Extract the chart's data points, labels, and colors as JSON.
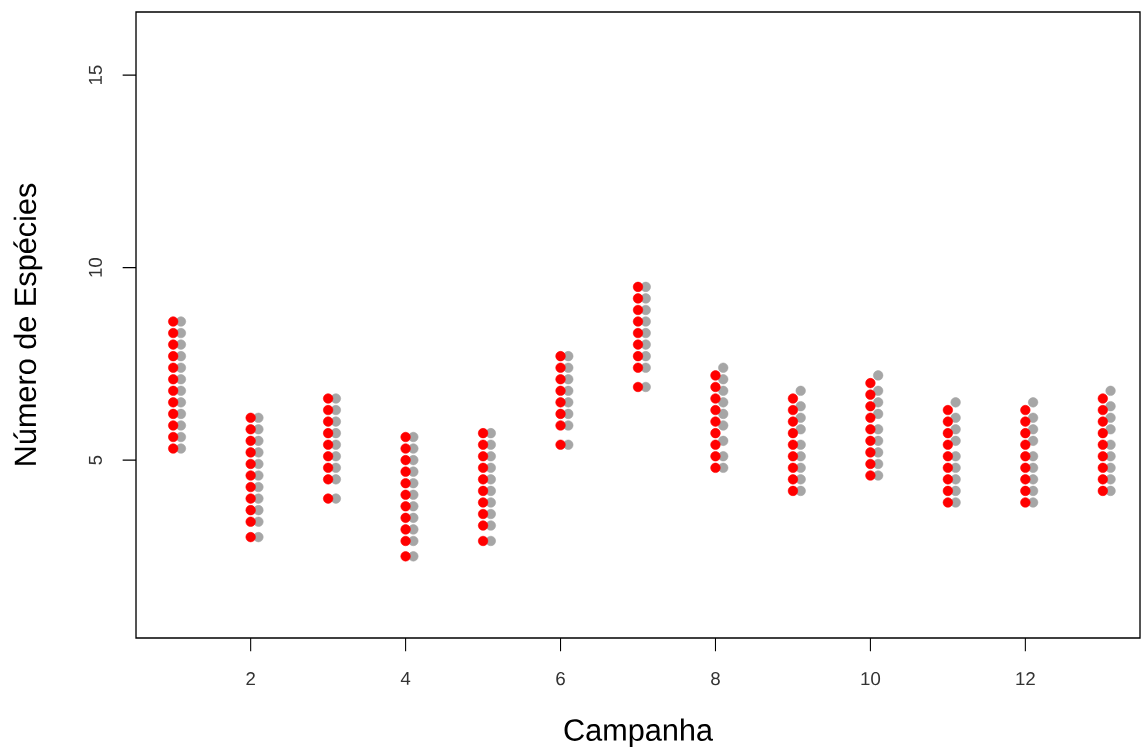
{
  "chart_data": {
    "type": "scatter",
    "xlabel": "Campanha",
    "ylabel": "Número de Espécies",
    "xlim": [
      0.52,
      13.48
    ],
    "ylim": [
      0.38,
      16.64
    ],
    "xticks": [
      2,
      4,
      6,
      8,
      10,
      12
    ],
    "yticks": [
      5,
      10,
      15
    ],
    "grid": false,
    "legend": false,
    "marker": "circle",
    "series": [
      {
        "color": "#a6a6a6",
        "x": [
          1.1,
          1.1,
          1.1,
          1.1,
          1.1,
          1.1,
          1.1,
          1.1,
          1.1,
          1.1,
          1.1,
          1.1,
          2.1,
          2.1,
          2.1,
          2.1,
          2.1,
          2.1,
          2.1,
          2.1,
          2.1,
          2.1,
          2.1,
          3.1,
          3.1,
          3.1,
          3.1,
          3.1,
          3.1,
          3.1,
          3.1,
          3.1,
          4.1,
          4.1,
          4.1,
          4.1,
          4.1,
          4.1,
          4.1,
          4.1,
          4.1,
          4.1,
          4.1,
          5.1,
          5.1,
          5.1,
          5.1,
          5.1,
          5.1,
          5.1,
          5.1,
          5.1,
          5.1,
          6.1,
          6.1,
          6.1,
          6.1,
          6.1,
          6.1,
          6.1,
          6.1,
          7.1,
          7.1,
          7.1,
          7.1,
          7.1,
          7.1,
          7.1,
          7.1,
          7.1,
          8.1,
          8.1,
          8.1,
          8.1,
          8.1,
          8.1,
          8.1,
          8.1,
          8.1,
          9.1,
          9.1,
          9.1,
          9.1,
          9.1,
          9.1,
          9.1,
          9.1,
          9.1,
          10.1,
          10.1,
          10.1,
          10.1,
          10.1,
          10.1,
          10.1,
          10.1,
          10.1,
          11.1,
          11.1,
          11.1,
          11.1,
          11.1,
          11.1,
          11.1,
          11.1,
          11.1,
          12.1,
          12.1,
          12.1,
          12.1,
          12.1,
          12.1,
          12.1,
          12.1,
          12.1,
          13.1,
          13.1,
          13.1,
          13.1,
          13.1,
          13.1,
          13.1,
          13.1,
          13.1
        ],
        "values": [
          8.6,
          8.3,
          8.0,
          7.7,
          7.4,
          7.1,
          6.8,
          6.5,
          6.2,
          5.9,
          5.6,
          5.3,
          6.1,
          5.8,
          5.5,
          5.2,
          4.9,
          4.6,
          4.3,
          4.0,
          3.7,
          3.4,
          3.0,
          6.6,
          6.3,
          6.0,
          5.7,
          5.4,
          5.1,
          4.8,
          4.5,
          4.0,
          5.6,
          5.3,
          5.0,
          4.7,
          4.4,
          4.1,
          3.8,
          3.5,
          3.2,
          2.9,
          2.5,
          5.7,
          5.4,
          5.1,
          4.8,
          4.5,
          4.2,
          3.9,
          3.6,
          3.3,
          2.9,
          7.7,
          7.4,
          7.1,
          6.8,
          6.5,
          6.2,
          5.9,
          5.4,
          9.5,
          9.2,
          8.9,
          8.6,
          8.3,
          8.0,
          7.7,
          7.4,
          6.9,
          7.4,
          7.1,
          6.8,
          6.5,
          6.2,
          5.9,
          5.5,
          5.1,
          4.8,
          6.8,
          6.4,
          6.1,
          5.8,
          5.4,
          5.1,
          4.8,
          4.5,
          4.2,
          7.2,
          6.8,
          6.5,
          6.2,
          5.8,
          5.5,
          5.2,
          4.9,
          4.6,
          6.5,
          6.1,
          5.8,
          5.5,
          5.1,
          4.8,
          4.5,
          4.2,
          3.9,
          6.5,
          6.1,
          5.8,
          5.5,
          5.1,
          4.8,
          4.5,
          4.2,
          3.9,
          6.8,
          6.4,
          6.1,
          5.8,
          5.4,
          5.1,
          4.8,
          4.5,
          4.2
        ]
      },
      {
        "color": "#ff0000",
        "x": [
          1,
          1,
          1,
          1,
          1,
          1,
          1,
          1,
          1,
          1,
          1,
          1,
          2,
          2,
          2,
          2,
          2,
          2,
          2,
          2,
          2,
          2,
          2,
          3,
          3,
          3,
          3,
          3,
          3,
          3,
          3,
          3,
          4,
          4,
          4,
          4,
          4,
          4,
          4,
          4,
          4,
          4,
          4,
          5,
          5,
          5,
          5,
          5,
          5,
          5,
          5,
          5,
          5,
          6,
          6,
          6,
          6,
          6,
          6,
          6,
          6,
          7,
          7,
          7,
          7,
          7,
          7,
          7,
          7,
          7,
          8,
          8,
          8,
          8,
          8,
          8,
          8,
          8,
          8,
          9,
          9,
          9,
          9,
          9,
          9,
          9,
          9,
          9,
          10,
          10,
          10,
          10,
          10,
          10,
          10,
          10,
          10,
          11,
          11,
          11,
          11,
          11,
          11,
          11,
          11,
          11,
          12,
          12,
          12,
          12,
          12,
          12,
          12,
          12,
          12,
          13,
          13,
          13,
          13,
          13,
          13,
          13,
          13,
          13
        ],
        "values": [
          8.6,
          8.3,
          8.0,
          7.7,
          7.4,
          7.1,
          6.8,
          6.5,
          6.2,
          5.9,
          5.6,
          5.3,
          6.1,
          5.8,
          5.5,
          5.2,
          4.9,
          4.6,
          4.3,
          4.0,
          3.7,
          3.4,
          3.0,
          6.6,
          6.3,
          6.0,
          5.7,
          5.4,
          5.1,
          4.8,
          4.5,
          4.0,
          5.6,
          5.3,
          5.0,
          4.7,
          4.4,
          4.1,
          3.8,
          3.5,
          3.2,
          2.9,
          2.5,
          5.7,
          5.4,
          5.1,
          4.8,
          4.5,
          4.2,
          3.9,
          3.6,
          3.3,
          2.9,
          7.7,
          7.4,
          7.1,
          6.8,
          6.5,
          6.2,
          5.9,
          5.4,
          9.5,
          9.2,
          8.9,
          8.6,
          8.3,
          8.0,
          7.7,
          7.4,
          6.9,
          7.2,
          6.9,
          6.6,
          6.3,
          6.0,
          5.7,
          5.4,
          5.1,
          4.8,
          6.6,
          6.3,
          6.0,
          5.7,
          5.4,
          5.1,
          4.8,
          4.5,
          4.2,
          7.0,
          6.7,
          6.4,
          6.1,
          5.8,
          5.5,
          5.2,
          4.9,
          4.6,
          6.3,
          6.0,
          5.7,
          5.4,
          5.1,
          4.8,
          4.5,
          4.2,
          3.9,
          6.3,
          6.0,
          5.7,
          5.4,
          5.1,
          4.8,
          4.5,
          4.2,
          3.9,
          6.6,
          6.3,
          6.0,
          5.7,
          5.4,
          5.1,
          4.8,
          4.5,
          4.2
        ]
      }
    ]
  }
}
